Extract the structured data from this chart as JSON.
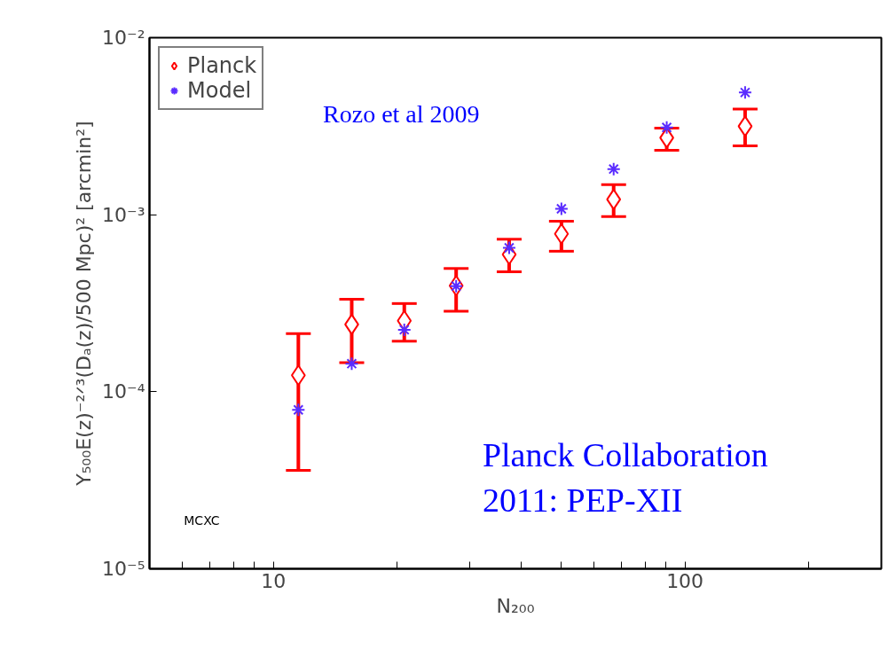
{
  "chart_data": {
    "type": "scatter",
    "xlabel": "N₂₀₀",
    "ylabel": "Y₅₀₀E(z)⁻²ᐟ³(Dₐ(z)/500 Mpc)² [arcmin²]",
    "log": "xy",
    "xlim": [
      5,
      300
    ],
    "ylim": [
      1e-05,
      0.01
    ],
    "xticks": [
      {
        "value": 6,
        "label": null
      },
      {
        "value": 7,
        "label": null
      },
      {
        "value": 8,
        "label": null
      },
      {
        "value": 9,
        "label": null
      },
      10,
      {
        "value": 20,
        "label": null
      },
      {
        "value": 30,
        "label": null
      },
      {
        "value": 40,
        "label": null
      },
      {
        "value": 50,
        "label": null
      },
      {
        "value": 60,
        "label": null
      },
      {
        "value": 70,
        "label": null
      },
      {
        "value": 80,
        "label": null
      },
      {
        "value": 90,
        "label": null
      },
      100,
      {
        "value": 200,
        "label": null
      }
    ],
    "yticks": [
      {
        "value": 1e-05,
        "label": "10⁻⁵"
      },
      {
        "value": 0.0001,
        "label": "10⁻⁴"
      },
      {
        "value": 0.001,
        "label": "10⁻³"
      },
      {
        "value": 0.01,
        "label": "10⁻²"
      }
    ],
    "grid": false,
    "legend": "top left",
    "x": [
      11.5,
      15.5,
      20.8,
      27.8,
      37.4,
      50.1,
      67.1,
      90.3,
      140
    ],
    "series": [
      {
        "name": "Planck",
        "color": "#ff0000",
        "marker": "diamond",
        "values": [
          0.000124,
          0.00024,
          0.000252,
          0.000397,
          0.000596,
          0.00078,
          0.00122,
          0.00272,
          0.00316
        ],
        "errors": [
          [
            3.6e-05,
            0.000213
          ],
          [
            0.000146,
            0.000333
          ],
          [
            0.000193,
            0.000315
          ],
          [
            0.000285,
            0.000497
          ],
          [
            0.000476,
            0.000727
          ],
          [
            0.000622,
            0.00092
          ],
          [
            0.000975,
            0.00148
          ],
          [
            0.00231,
            0.00308
          ],
          [
            0.00245,
            0.00395
          ]
        ]
      },
      {
        "name": "Model",
        "color": "#5a2cff",
        "marker": "cross",
        "values": [
          7.9e-05,
          0.000144,
          0.000224,
          0.000395,
          0.00065,
          0.00108,
          0.00181,
          0.00311,
          0.0049
        ]
      }
    ],
    "annotations": [
      "Rozo et al 2009",
      "Planck Collaboration\n2011:  PEP-XII",
      "MCXC"
    ]
  }
}
